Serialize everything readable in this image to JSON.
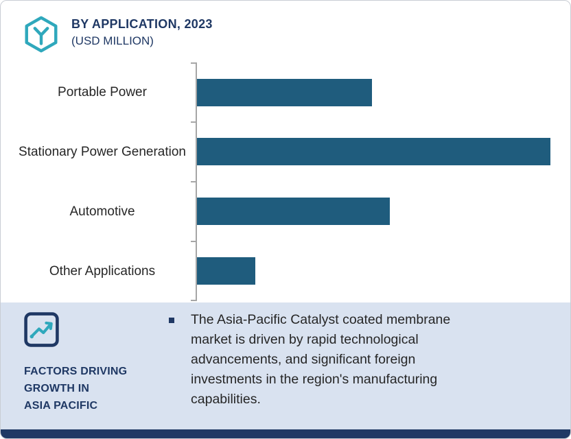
{
  "header": {
    "title": "BY APPLICATION, 2023",
    "subtitle": "(USD MILLION)"
  },
  "chart_data": {
    "type": "bar",
    "orientation": "horizontal",
    "title": "BY APPLICATION, 2023",
    "subtitle": "(USD MILLION)",
    "categories": [
      "Portable Power",
      "Stationary Power Generation",
      "Automotive",
      "Other Applications"
    ],
    "values": [
      49.5,
      100,
      54.5,
      16.5
    ],
    "value_scale": "relative to longest bar; chart displays no numeric axis or data labels",
    "xlabel": "",
    "ylabel": "",
    "grid": false,
    "legend": false,
    "bar_color": "#1f5c7d",
    "axis_color": "#a6a6a6"
  },
  "footer": {
    "heading": "FACTORS DRIVING\nGROWTH IN\nASIA PACIFIC",
    "bullet_text": "The Asia-Pacific Catalyst coated membrane\nmarket is driven by rapid technological\nadvancements, and significant foreign\ninvestments in the region's manufacturing\ncapabilities."
  },
  "icons": {
    "logo": "hexagon-molecule-icon",
    "growth": "line-chart-icon"
  },
  "colors": {
    "navy": "#1f3864",
    "teal": "#2fa8bc",
    "panel_bg": "#d9e2f0",
    "bar": "#1f5c7d"
  }
}
